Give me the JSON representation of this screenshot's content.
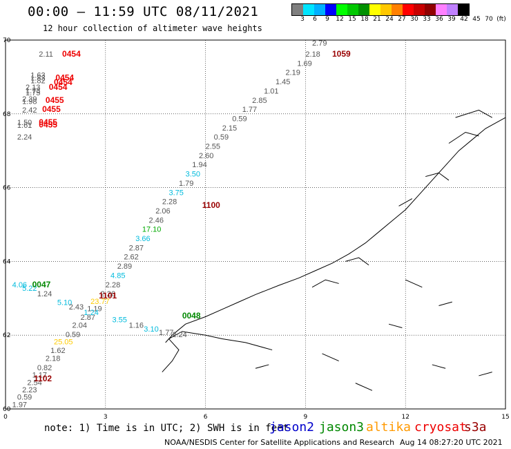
{
  "header": {
    "title": "00:00 – 11:59 UTC 08/11/2021",
    "subtitle": "12 hour collection of altimeter wave heights"
  },
  "scale": {
    "colors": [
      "#7f7f7f",
      "#00e5ff",
      "#00b0ff",
      "#0000ff",
      "#00ff00",
      "#00c800",
      "#009000",
      "#ffff00",
      "#ffc800",
      "#ff8000",
      "#ff0000",
      "#c80000",
      "#900000",
      "#ff80ff",
      "#c080ff",
      "#000000"
    ],
    "labels": [
      "3",
      "6",
      "9",
      "12",
      "15",
      "18",
      "21",
      "24",
      "27",
      "30",
      "33",
      "36",
      "39",
      "42",
      "45",
      "70",
      "(ft)"
    ]
  },
  "axes": {
    "x_ticks": [
      "0",
      "3",
      "6",
      "9",
      "12",
      "15"
    ],
    "y_ticks": [
      "60",
      "62",
      "64",
      "66",
      "68",
      "70"
    ]
  },
  "footer": {
    "note": "note: 1) Time is in UTC; 2) SWH is in feet",
    "satellites": [
      {
        "name": "jason2",
        "color": "#0000cc"
      },
      {
        "name": "jason3",
        "color": "#008800"
      },
      {
        "name": "altika",
        "color": "#ff9900"
      },
      {
        "name": "cryosat",
        "color": "#ee0000"
      },
      {
        "name": "s3a",
        "color": "#990000"
      }
    ],
    "credit": "NOAA/NESDIS Center for Satellite Applications and Research",
    "timestamp": "Aug 14 08:27:20 UTC 2021"
  },
  "map_data": {
    "pass_labels": [
      {
        "text": "0454",
        "lon": 1.7,
        "lat": 69.55,
        "color": "#ee0000"
      },
      {
        "text": "0454",
        "lon": 1.5,
        "lat": 68.9,
        "color": "#ee0000"
      },
      {
        "text": "0454",
        "lon": 1.45,
        "lat": 68.78,
        "color": "#ee0000"
      },
      {
        "text": "0454",
        "lon": 1.3,
        "lat": 68.65,
        "color": "#ee0000"
      },
      {
        "text": "0455",
        "lon": 1.2,
        "lat": 68.3,
        "color": "#ee0000"
      },
      {
        "text": "0455",
        "lon": 1.1,
        "lat": 68.05,
        "color": "#ee0000"
      },
      {
        "text": "0455",
        "lon": 1.0,
        "lat": 67.7,
        "color": "#ee0000"
      },
      {
        "text": "0455",
        "lon": 1.0,
        "lat": 67.63,
        "color": "#ee0000"
      },
      {
        "text": "1059",
        "lon": 9.8,
        "lat": 69.55,
        "color": "#990000"
      },
      {
        "text": "1100",
        "lon": 5.9,
        "lat": 65.45,
        "color": "#990000"
      },
      {
        "text": "1101",
        "lon": 2.8,
        "lat": 63.0,
        "color": "#990000"
      },
      {
        "text": "1102",
        "lon": 0.85,
        "lat": 60.75,
        "color": "#990000"
      },
      {
        "text": "0047",
        "lon": 0.8,
        "lat": 63.3,
        "color": "#008800"
      },
      {
        "text": "0048",
        "lon": 5.3,
        "lat": 62.45,
        "color": "#008800"
      }
    ],
    "wave_heights": [
      {
        "text": "2.11",
        "lon": 1.0,
        "lat": 69.55,
        "color": "#555555"
      },
      {
        "text": "1.63",
        "lon": 0.75,
        "lat": 68.98,
        "color": "#555555"
      },
      {
        "text": "1.83",
        "lon": 0.75,
        "lat": 68.9,
        "color": "#555555"
      },
      {
        "text": "1.82",
        "lon": 0.75,
        "lat": 68.83,
        "color": "#555555"
      },
      {
        "text": "2.13",
        "lon": 0.6,
        "lat": 68.65,
        "color": "#555555"
      },
      {
        "text": "1.73",
        "lon": 0.6,
        "lat": 68.56,
        "color": "#555555"
      },
      {
        "text": "1.75",
        "lon": 0.6,
        "lat": 68.5,
        "color": "#555555"
      },
      {
        "text": "2.39",
        "lon": 0.5,
        "lat": 68.33,
        "color": "#555555"
      },
      {
        "text": "1.98",
        "lon": 0.5,
        "lat": 68.27,
        "color": "#555555"
      },
      {
        "text": "2.42",
        "lon": 0.5,
        "lat": 68.03,
        "color": "#555555"
      },
      {
        "text": "1.50",
        "lon": 0.35,
        "lat": 67.7,
        "color": "#555555"
      },
      {
        "text": "1.61",
        "lon": 0.35,
        "lat": 67.62,
        "color": "#555555"
      },
      {
        "text": "2.24",
        "lon": 0.35,
        "lat": 67.3,
        "color": "#555555"
      },
      {
        "text": "2.79",
        "lon": 9.2,
        "lat": 69.85,
        "color": "#555555"
      },
      {
        "text": "2.18",
        "lon": 9.0,
        "lat": 69.55,
        "color": "#555555"
      },
      {
        "text": "1.69",
        "lon": 8.75,
        "lat": 69.3,
        "color": "#555555"
      },
      {
        "text": "2.19",
        "lon": 8.4,
        "lat": 69.05,
        "color": "#555555"
      },
      {
        "text": "1.45",
        "lon": 8.1,
        "lat": 68.8,
        "color": "#555555"
      },
      {
        "text": "1.01",
        "lon": 7.75,
        "lat": 68.55,
        "color": "#555555"
      },
      {
        "text": "2.85",
        "lon": 7.4,
        "lat": 68.3,
        "color": "#555555"
      },
      {
        "text": "1.77",
        "lon": 7.1,
        "lat": 68.05,
        "color": "#555555"
      },
      {
        "text": "0.59",
        "lon": 6.8,
        "lat": 67.8,
        "color": "#555555"
      },
      {
        "text": "2.15",
        "lon": 6.5,
        "lat": 67.55,
        "color": "#555555"
      },
      {
        "text": "0.59",
        "lon": 6.25,
        "lat": 67.3,
        "color": "#555555"
      },
      {
        "text": "2.55",
        "lon": 6.0,
        "lat": 67.05,
        "color": "#555555"
      },
      {
        "text": "2.60",
        "lon": 5.8,
        "lat": 66.8,
        "color": "#555555"
      },
      {
        "text": "1.94",
        "lon": 5.6,
        "lat": 66.55,
        "color": "#555555"
      },
      {
        "text": "3.50",
        "lon": 5.4,
        "lat": 66.3,
        "color": "#00bbdd"
      },
      {
        "text": "1.79",
        "lon": 5.2,
        "lat": 66.05,
        "color": "#555555"
      },
      {
        "text": "3.75",
        "lon": 4.9,
        "lat": 65.8,
        "color": "#00bbdd"
      },
      {
        "text": "2.28",
        "lon": 4.7,
        "lat": 65.55,
        "color": "#555555"
      },
      {
        "text": "2.06",
        "lon": 4.5,
        "lat": 65.3,
        "color": "#555555"
      },
      {
        "text": "2.46",
        "lon": 4.3,
        "lat": 65.05,
        "color": "#555555"
      },
      {
        "text": "17.10",
        "lon": 4.1,
        "lat": 64.8,
        "color": "#00aa00"
      },
      {
        "text": "3.66",
        "lon": 3.9,
        "lat": 64.55,
        "color": "#00bbdd"
      },
      {
        "text": "2.87",
        "lon": 3.7,
        "lat": 64.3,
        "color": "#555555"
      },
      {
        "text": "2.62",
        "lon": 3.55,
        "lat": 64.05,
        "color": "#555555"
      },
      {
        "text": "2.89",
        "lon": 3.35,
        "lat": 63.8,
        "color": "#555555"
      },
      {
        "text": "4.85",
        "lon": 3.15,
        "lat": 63.55,
        "color": "#00bbdd"
      },
      {
        "text": "2.28",
        "lon": 3.0,
        "lat": 63.3,
        "color": "#555555"
      },
      {
        "text": "2.26",
        "lon": 2.85,
        "lat": 63.05,
        "color": "#555555"
      },
      {
        "text": "23.77",
        "lon": 2.55,
        "lat": 62.85,
        "color": "#ffcc00"
      },
      {
        "text": "1.19",
        "lon": 2.45,
        "lat": 62.65,
        "color": "#555555"
      },
      {
        "text": "2.87",
        "lon": 2.25,
        "lat": 62.42,
        "color": "#555555"
      },
      {
        "text": "2.04",
        "lon": 2.0,
        "lat": 62.2,
        "color": "#555555"
      },
      {
        "text": "0.59",
        "lon": 1.8,
        "lat": 61.95,
        "color": "#555555"
      },
      {
        "text": "25.05",
        "lon": 1.45,
        "lat": 61.75,
        "color": "#ffcc00"
      },
      {
        "text": "1.62",
        "lon": 1.35,
        "lat": 61.52,
        "color": "#555555"
      },
      {
        "text": "2.18",
        "lon": 1.2,
        "lat": 61.3,
        "color": "#555555"
      },
      {
        "text": "0.82",
        "lon": 0.95,
        "lat": 61.05,
        "color": "#555555"
      },
      {
        "text": "1.17",
        "lon": 0.8,
        "lat": 60.85,
        "color": "#555555"
      },
      {
        "text": "2.54",
        "lon": 0.65,
        "lat": 60.65,
        "color": "#555555"
      },
      {
        "text": "2.23",
        "lon": 0.5,
        "lat": 60.45,
        "color": "#555555"
      },
      {
        "text": "0.59",
        "lon": 0.35,
        "lat": 60.25,
        "color": "#555555"
      },
      {
        "text": "1.97",
        "lon": 0.2,
        "lat": 60.05,
        "color": "#555555"
      },
      {
        "text": "4.06",
        "lon": 0.2,
        "lat": 63.3,
        "color": "#00bbdd"
      },
      {
        "text": "5.22",
        "lon": 0.5,
        "lat": 63.2,
        "color": "#00bbdd"
      },
      {
        "text": "1.24",
        "lon": 0.95,
        "lat": 63.05,
        "color": "#555555"
      },
      {
        "text": "5.10",
        "lon": 1.55,
        "lat": 62.82,
        "color": "#00bbdd"
      },
      {
        "text": "2.43",
        "lon": 1.9,
        "lat": 62.7,
        "color": "#555555"
      },
      {
        "text": "1.24",
        "lon": 2.35,
        "lat": 62.55,
        "color": "#00bbdd"
      },
      {
        "text": "3.55",
        "lon": 3.2,
        "lat": 62.35,
        "color": "#00bbdd"
      },
      {
        "text": "1.16",
        "lon": 3.7,
        "lat": 62.2,
        "color": "#555555"
      },
      {
        "text": "3.10",
        "lon": 4.15,
        "lat": 62.1,
        "color": "#00bbdd"
      },
      {
        "text": "1.77",
        "lon": 4.6,
        "lat": 62.0,
        "color": "#555555"
      },
      {
        "text": "2.24",
        "lon": 5.0,
        "lat": 61.95,
        "color": "#555555"
      }
    ]
  }
}
